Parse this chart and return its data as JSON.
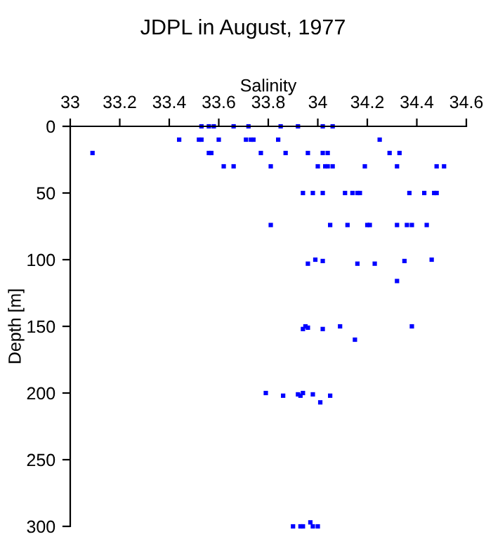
{
  "chart_data": {
    "type": "scatter",
    "title": "JDPL in August, 1977",
    "xlabel": "Salinity",
    "ylabel": "Depth [m]",
    "marker": "square",
    "grid": false,
    "series": [
      {
        "color": "#0000ff",
        "x": [
          33.53,
          33.56,
          33.58,
          33.66,
          33.72,
          33.85,
          33.92,
          34.02,
          34.06,
          33.44,
          33.52,
          33.53,
          33.6,
          33.71,
          33.73,
          33.74,
          33.84,
          34.25,
          33.09,
          33.56,
          33.57,
          33.77,
          33.87,
          33.96,
          34.02,
          34.04,
          34.29,
          34.33,
          33.62,
          33.66,
          33.81,
          34.0,
          34.03,
          34.04,
          34.06,
          34.19,
          34.32,
          34.48,
          34.51,
          33.94,
          33.98,
          34.02,
          34.11,
          34.14,
          34.16,
          34.17,
          34.37,
          34.43,
          34.47,
          34.48,
          33.81,
          34.05,
          34.12,
          34.2,
          34.21,
          34.32,
          34.36,
          34.38,
          34.44,
          33.96,
          34.16,
          34.23,
          33.99,
          34.46,
          34.02,
          34.35,
          34.32,
          33.95,
          34.09,
          34.38,
          33.94,
          34.02,
          33.96,
          34.15,
          33.79,
          33.86,
          33.92,
          33.98,
          33.94,
          33.93,
          34.05,
          34.01,
          33.9,
          33.93,
          33.94,
          33.98,
          34.0,
          33.97
        ],
        "values": [
          0,
          0,
          0,
          0,
          0,
          0,
          0,
          0,
          0,
          10,
          10,
          10,
          10,
          10,
          10,
          10,
          10,
          10,
          20,
          20,
          20,
          20,
          20,
          20,
          20,
          20,
          20,
          20,
          30,
          30,
          30,
          30,
          30,
          30,
          30,
          30,
          30,
          30,
          30,
          50,
          50,
          50,
          50,
          50,
          50,
          50,
          50,
          50,
          50,
          50,
          74,
          74,
          74,
          74,
          74,
          74,
          74,
          74,
          74,
          103,
          103,
          103,
          100,
          100,
          101,
          101,
          116,
          150,
          150,
          150,
          152,
          152,
          151,
          160,
          200,
          202,
          201,
          201,
          200,
          202,
          202,
          207,
          300,
          300,
          300,
          300,
          300,
          297
        ]
      }
    ],
    "xlim": [
      33,
      34.6
    ],
    "xticks": [
      33,
      33.2,
      33.4,
      33.6,
      33.8,
      34,
      34.2,
      34.4,
      34.6
    ],
    "ylim": [
      300,
      0
    ],
    "yticks": [
      0,
      50,
      100,
      150,
      200,
      250,
      300
    ]
  }
}
